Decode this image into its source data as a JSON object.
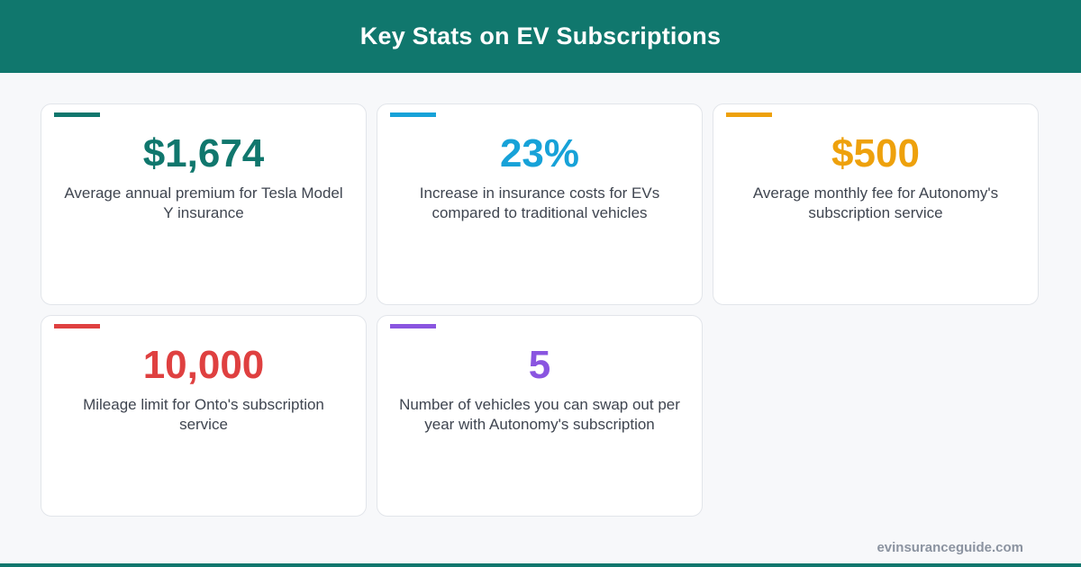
{
  "header": {
    "title": "Key Stats on EV Subscriptions"
  },
  "stats": [
    {
      "value": "$1,674",
      "description": "Average annual premium for Tesla Model Y insurance",
      "color": "#10776d"
    },
    {
      "value": "23%",
      "description": "Increase in insurance costs for EVs compared to traditional vehicles",
      "color": "#17a2d8"
    },
    {
      "value": "$500",
      "description": "Average monthly fee for Autonomy's subscription service",
      "color": "#eea10c"
    },
    {
      "value": "10,000",
      "description": "Mileage limit for Onto's subscription service",
      "color": "#df4040"
    },
    {
      "value": "5",
      "description": "Number of vehicles you can swap out per year with Autonomy's subscription",
      "color": "#8a55e0"
    }
  ],
  "footer": {
    "domain": "evinsuranceguide.com",
    "bar_color": "#10776d"
  }
}
